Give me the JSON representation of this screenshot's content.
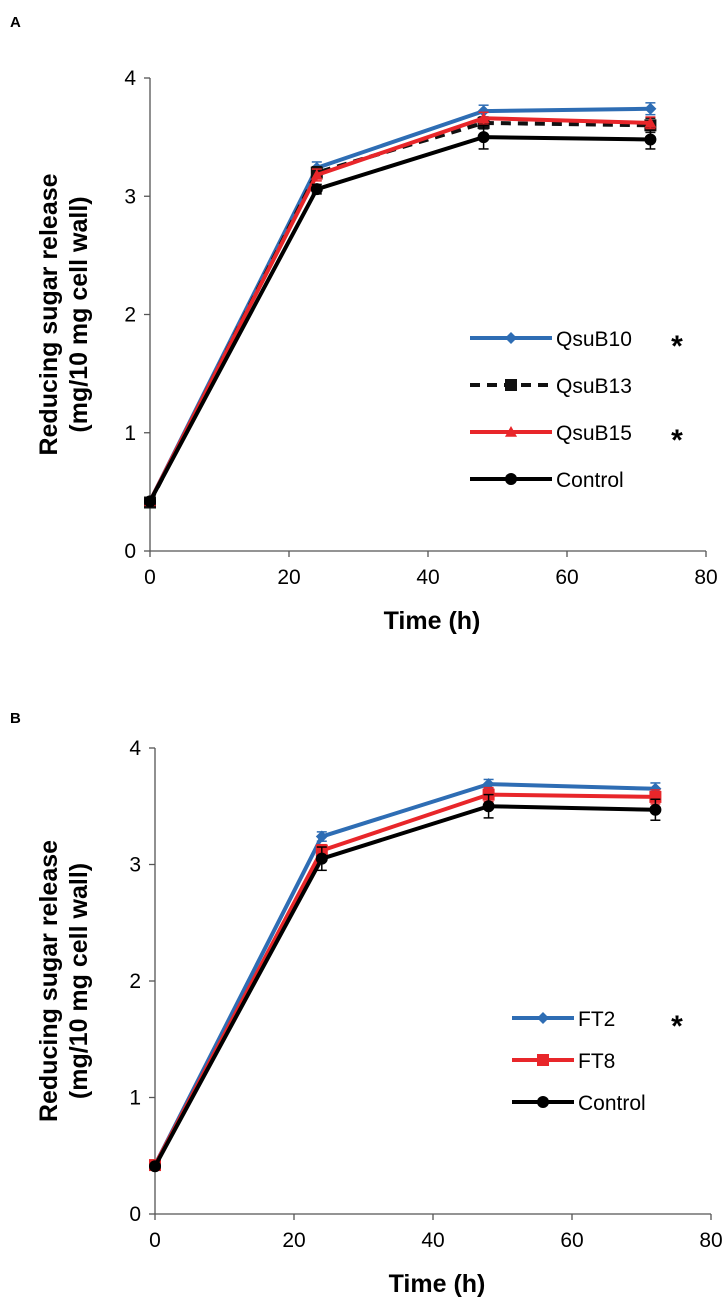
{
  "chart_data": [
    {
      "panel": "A",
      "type": "line",
      "xlabel": "Time (h)",
      "ylabel_line1": "Reducing sugar release",
      "ylabel_line2": "(mg/10 mg cell wall)",
      "xlim": [
        0,
        80
      ],
      "ylim": [
        0,
        4
      ],
      "xticks": [
        0,
        20,
        40,
        60,
        80
      ],
      "yticks": [
        0,
        1,
        2,
        3,
        4
      ],
      "x": [
        0,
        24,
        48,
        72
      ],
      "grid": false,
      "legend_position": "center-right",
      "series": [
        {
          "name": "QsuB10",
          "values": [
            0.42,
            3.24,
            3.72,
            3.74
          ],
          "errors": [
            0.02,
            0.05,
            0.05,
            0.05
          ],
          "color": "#2e6db4",
          "marker": "diamond",
          "dash": "solid",
          "significance": "*"
        },
        {
          "name": "QsuB13",
          "values": [
            0.41,
            3.2,
            3.62,
            3.6
          ],
          "errors": [
            0.02,
            0.05,
            0.05,
            0.06
          ],
          "color": "#111111",
          "marker": "square",
          "dash": "dashed",
          "significance": ""
        },
        {
          "name": "QsuB15",
          "values": [
            0.42,
            3.18,
            3.66,
            3.62
          ],
          "errors": [
            0.02,
            0.05,
            0.05,
            0.05
          ],
          "color": "#e8262a",
          "marker": "triangle",
          "dash": "solid",
          "significance": "*"
        },
        {
          "name": "Control",
          "values": [
            0.42,
            3.06,
            3.5,
            3.48
          ],
          "errors": [
            0.02,
            0.04,
            0.1,
            0.08
          ],
          "color": "#000000",
          "marker": "circle",
          "dash": "solid",
          "significance": ""
        }
      ]
    },
    {
      "panel": "B",
      "type": "line",
      "xlabel": "Time (h)",
      "ylabel_line1": "Reducing sugar release",
      "ylabel_line2": "(mg/10 mg cell wall)",
      "xlim": [
        0,
        80
      ],
      "ylim": [
        0,
        4
      ],
      "xticks": [
        0,
        20,
        40,
        60,
        80
      ],
      "yticks": [
        0,
        1,
        2,
        3,
        4
      ],
      "x": [
        0,
        24,
        48,
        72
      ],
      "grid": false,
      "legend_position": "center-right",
      "series": [
        {
          "name": "FT2",
          "values": [
            0.42,
            3.24,
            3.69,
            3.65
          ],
          "errors": [
            0.02,
            0.04,
            0.04,
            0.05
          ],
          "color": "#2e6db4",
          "marker": "diamond",
          "dash": "solid",
          "significance": "*"
        },
        {
          "name": "FT8",
          "values": [
            0.42,
            3.12,
            3.6,
            3.58
          ],
          "errors": [
            0.02,
            0.05,
            0.06,
            0.06
          ],
          "color": "#e8262a",
          "marker": "square",
          "dash": "solid",
          "significance": ""
        },
        {
          "name": "Control",
          "values": [
            0.41,
            3.05,
            3.5,
            3.47
          ],
          "errors": [
            0.02,
            0.1,
            0.1,
            0.09
          ],
          "color": "#000000",
          "marker": "circle",
          "dash": "solid",
          "significance": ""
        }
      ]
    }
  ]
}
